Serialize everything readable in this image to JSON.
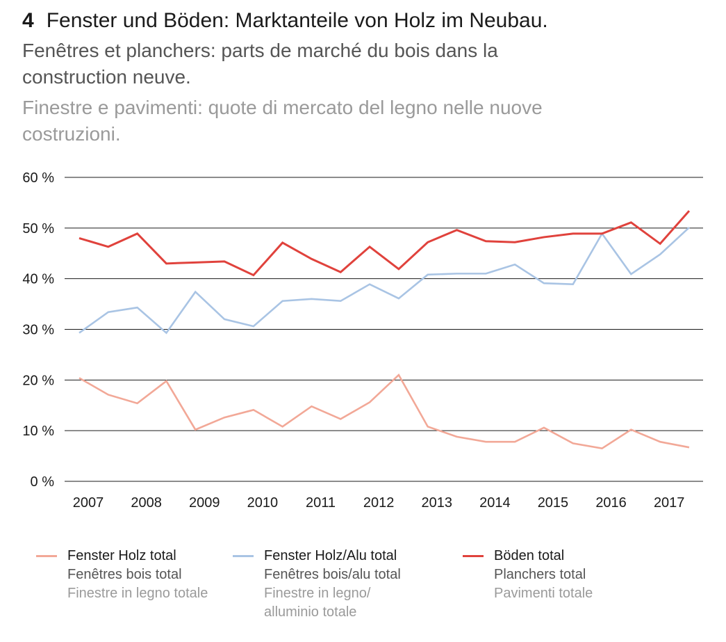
{
  "title": {
    "number": "4",
    "de": "Fenster und Böden: Marktanteile von Holz im Neubau.",
    "fr": "Fenêtres et planchers: parts de marché du bois dans la construction neuve.",
    "it": "Finestre e pavimenti: quote di mercato del legno nelle nuove costruzioni."
  },
  "chart_data": {
    "type": "line",
    "x": [
      2007.0,
      2007.5,
      2008.0,
      2008.5,
      2009.0,
      2009.5,
      2010.0,
      2010.5,
      2011.0,
      2011.5,
      2012.0,
      2012.5,
      2013.0,
      2013.5,
      2014.0,
      2014.5,
      2015.0,
      2015.5,
      2016.0,
      2016.5,
      2017.0,
      2017.5
    ],
    "xticks": [
      2007,
      2008,
      2009,
      2010,
      2011,
      2012,
      2013,
      2014,
      2015,
      2016,
      2017
    ],
    "yticks": [
      0,
      10,
      20,
      30,
      40,
      50,
      60
    ],
    "ytick_labels": [
      "0 %",
      "10 %",
      "20 %",
      "30 %",
      "40 %",
      "50 %",
      "60 %"
    ],
    "ylim": [
      0,
      60
    ],
    "series": [
      {
        "name": "Fenster Holz total",
        "color": "#f2a897",
        "values": [
          20.4,
          17.1,
          15.4,
          19.8,
          10.2,
          12.6,
          14.1,
          10.8,
          14.8,
          12.3,
          15.6,
          21.0,
          10.8,
          8.8,
          7.8,
          7.8,
          10.6,
          7.5,
          6.5,
          10.2,
          7.8,
          6.7
        ]
      },
      {
        "name": "Fenster Holz/Alu total",
        "color": "#a9c4e4",
        "values": [
          29.3,
          33.4,
          34.3,
          29.3,
          37.4,
          32.0,
          30.6,
          35.6,
          36.0,
          35.6,
          38.9,
          36.1,
          40.8,
          41.0,
          41.0,
          42.8,
          39.1,
          38.9,
          48.9,
          40.9,
          44.8,
          50.1
        ]
      },
      {
        "name": "Böden total",
        "color": "#e0423c",
        "values": [
          48.0,
          46.3,
          48.9,
          43.0,
          43.2,
          43.4,
          40.7,
          47.1,
          43.9,
          41.3,
          46.3,
          41.9,
          47.2,
          49.6,
          47.4,
          47.2,
          48.2,
          48.9,
          48.9,
          51.1,
          46.9,
          53.4
        ]
      }
    ]
  },
  "legend": [
    {
      "de": "Fenster Holz total",
      "fr": "Fenêtres bois total",
      "it": "Finestre in legno totale",
      "color": "#f2a897"
    },
    {
      "de": "Fenster Holz/Alu total",
      "fr": "Fenêtres bois/alu total",
      "it": "Finestre in legno/\nalluminio totale",
      "color": "#a9c4e4"
    },
    {
      "de": "Böden total",
      "fr": "Planchers total",
      "it": "Pavimenti totale",
      "color": "#e0423c"
    }
  ]
}
